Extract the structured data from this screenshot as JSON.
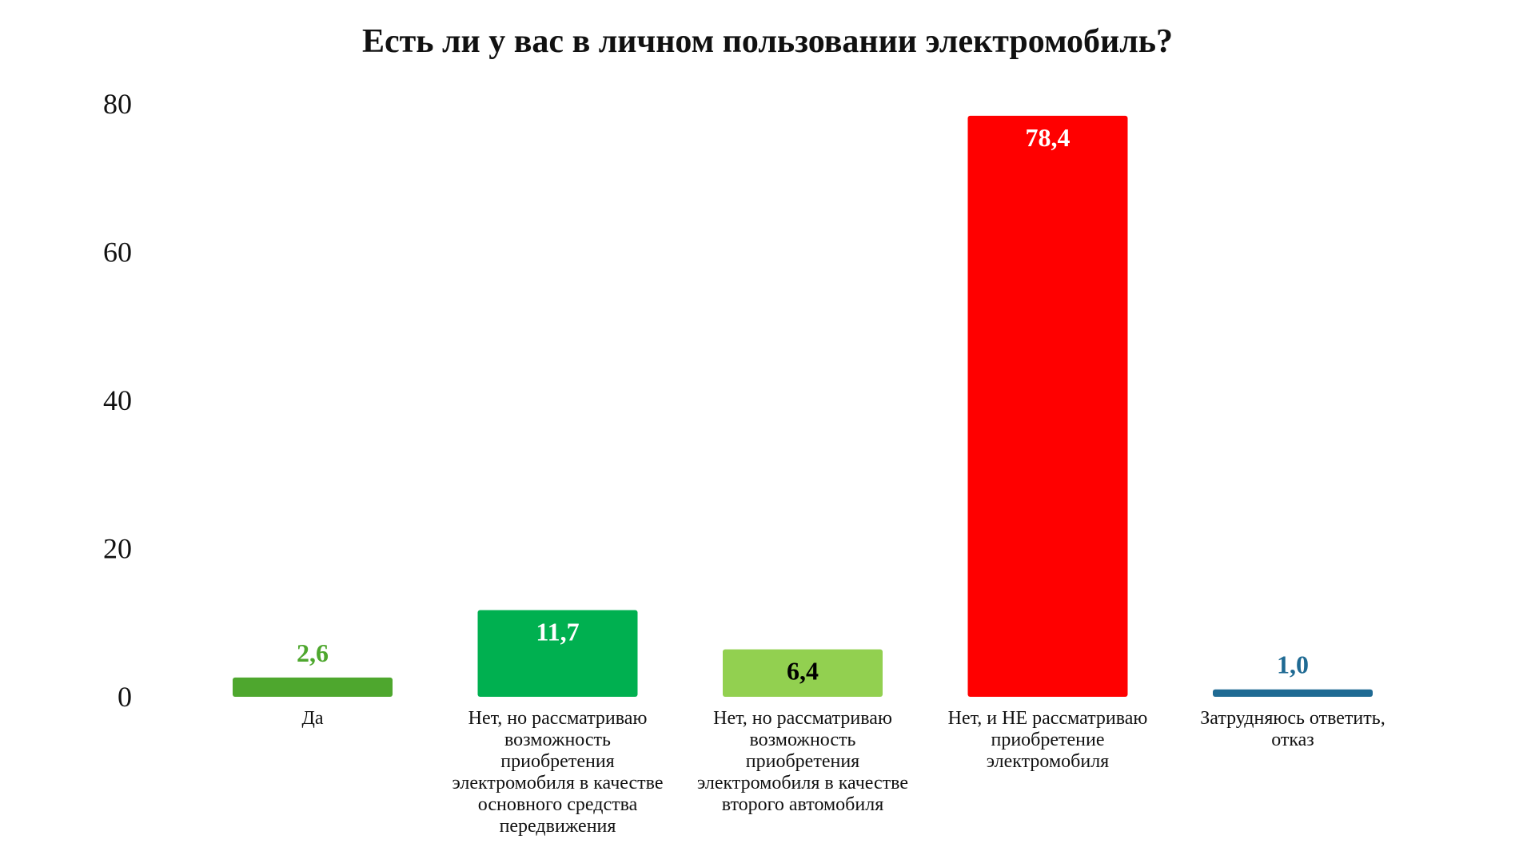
{
  "chart_data": {
    "type": "bar",
    "title": "Есть ли у вас в личном пользовании электромобиль?",
    "xlabel": "",
    "ylabel": "",
    "ylim": [
      0,
      80
    ],
    "yticks": [
      "0",
      "20",
      "40",
      "60",
      "80"
    ],
    "grid": false,
    "categories": [
      "Да",
      "Нет, но рассматриваю возможность приобретения электромобиля в качестве основного средства передвижения",
      "Нет, но рассматриваю возможность приобретения электромобиля в качестве второго автомобиля",
      "Нет, и НЕ рассматриваю приобретение электромобиля",
      "Затрудняюсь ответить, отказ"
    ],
    "values": [
      2.6,
      11.7,
      6.4,
      78.4,
      1.0
    ],
    "value_labels": [
      "2,6",
      "11,7",
      "6,4",
      "78,4",
      "1,0"
    ],
    "colors": [
      "#4ea72e",
      "#00b050",
      "#92d050",
      "#ff0000",
      "#1f6a93"
    ],
    "label_colors": [
      "#4ea72e",
      "#ffffff",
      "#000000",
      "#ffffff",
      "#1f6a93"
    ],
    "label_inside": [
      false,
      true,
      true,
      true,
      false
    ]
  }
}
